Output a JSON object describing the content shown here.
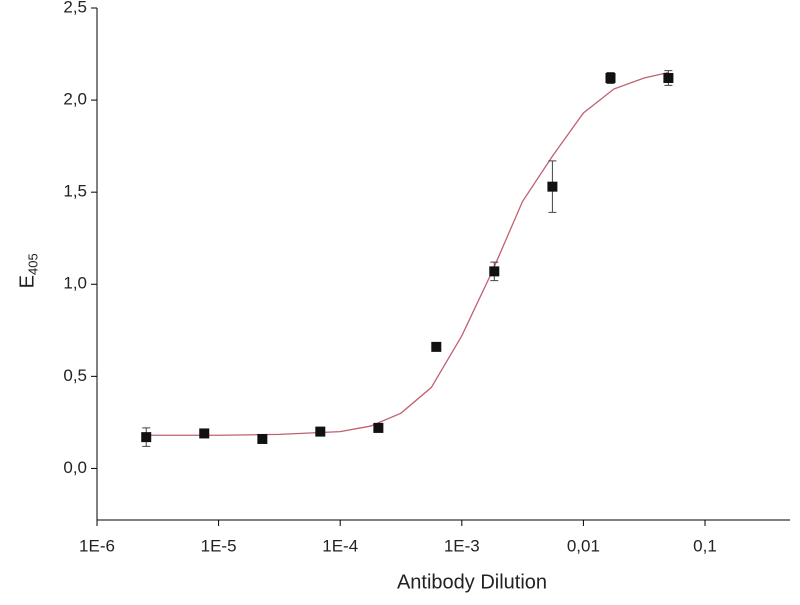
{
  "chart_data": {
    "type": "scatter",
    "xlabel": "Antibody Dilution",
    "ylabel": "E",
    "ylabel_subscript": "405",
    "xscale": "log",
    "xlim": [
      1e-06,
      0.5
    ],
    "ylim": [
      -0.28,
      2.5
    ],
    "xticks": [
      {
        "value": 1e-06,
        "label": "1E-6"
      },
      {
        "value": 1e-05,
        "label": "1E-5"
      },
      {
        "value": 0.0001,
        "label": "1E-4"
      },
      {
        "value": 0.001,
        "label": "1E-3"
      },
      {
        "value": 0.01,
        "label": "0,01"
      },
      {
        "value": 0.1,
        "label": "0,1"
      }
    ],
    "yticks": [
      {
        "value": 0,
        "label": "0,0"
      },
      {
        "value": 0.5,
        "label": "0,5"
      },
      {
        "value": 1,
        "label": "1,0"
      },
      {
        "value": 1.5,
        "label": "1,5"
      },
      {
        "value": 2,
        "label": "2,0"
      },
      {
        "value": 2.5,
        "label": "2,5"
      }
    ],
    "series": [
      {
        "color": "#111111",
        "x": [
          2.54e-06,
          7.62e-06,
          2.29e-05,
          6.86e-05,
          0.000206,
          0.000617,
          0.00185,
          0.00556,
          0.0167,
          0.05
        ],
        "values": [
          0.17,
          0.19,
          0.16,
          0.2,
          0.22,
          0.66,
          1.07,
          1.53,
          2.12,
          2.12
        ],
        "errors": [
          0.05,
          0.02,
          0.02,
          0.02,
          0.02,
          0.02,
          0.05,
          0.14,
          0.03,
          0.04
        ]
      }
    ],
    "fit": {
      "color": "#c06070",
      "x": [
        2.54e-06,
        1e-05,
        3.16e-05,
        0.0001,
        0.000178,
        0.000316,
        0.000562,
        0.001,
        0.00178,
        0.00316,
        0.00562,
        0.01,
        0.0178,
        0.0316,
        0.05
      ],
      "values": [
        0.18,
        0.18,
        0.185,
        0.2,
        0.23,
        0.3,
        0.44,
        0.72,
        1.07,
        1.45,
        1.7,
        1.93,
        2.06,
        2.12,
        2.15
      ]
    }
  }
}
